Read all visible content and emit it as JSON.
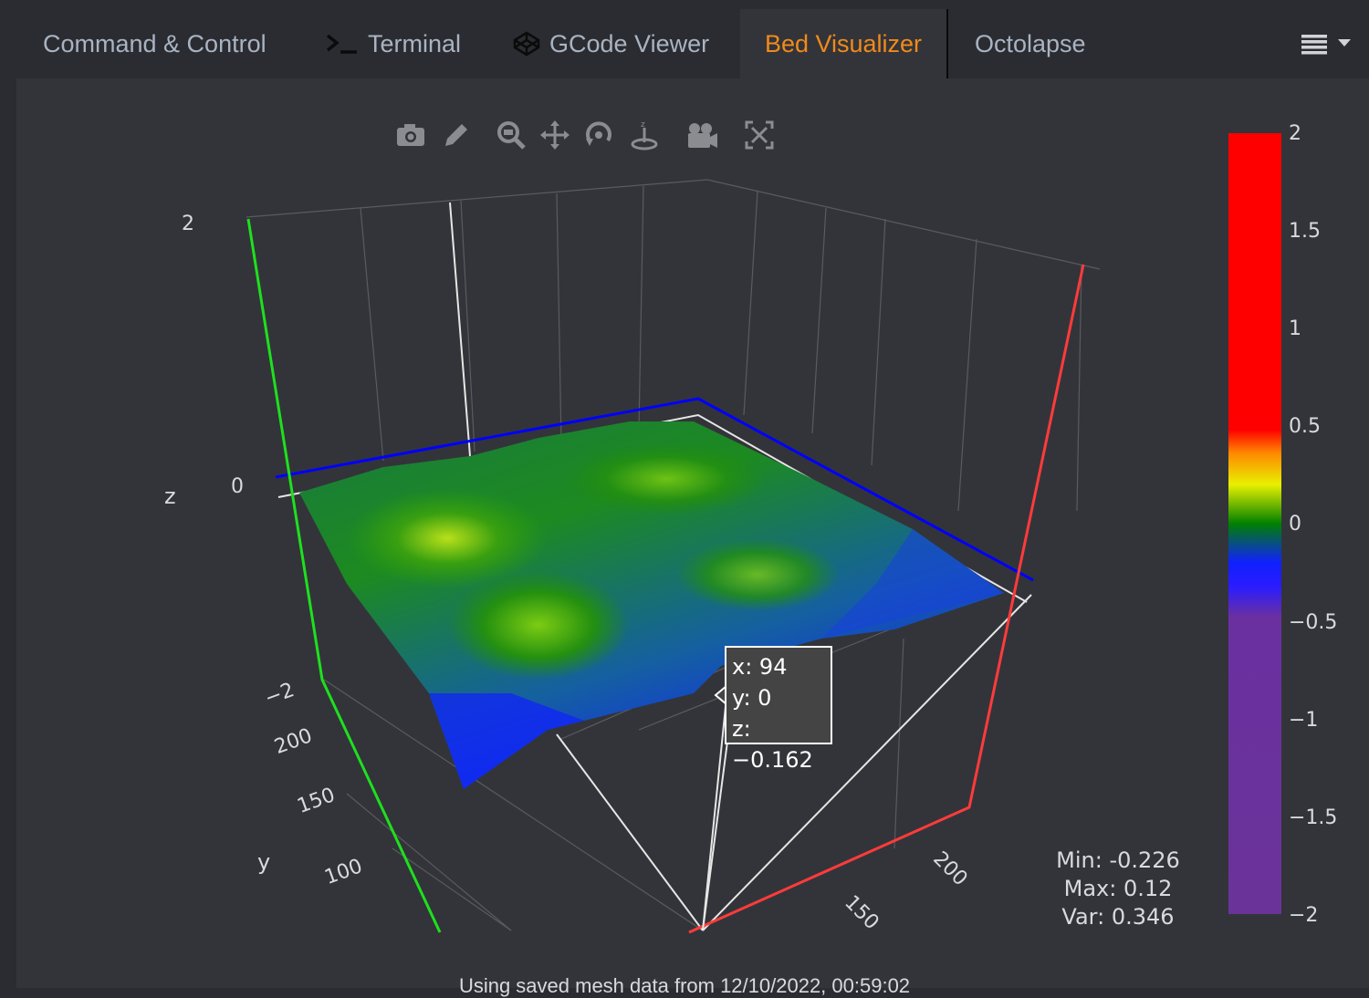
{
  "tabs": [
    {
      "label": "Command & Control",
      "icon": ""
    },
    {
      "label": "Terminal",
      "icon": "terminal-icon"
    },
    {
      "label": "GCode Viewer",
      "icon": "codepen-icon"
    },
    {
      "label": "Bed Visualizer",
      "icon": "",
      "active": true
    },
    {
      "label": "Octolapse",
      "icon": ""
    }
  ],
  "menu_icon": "hamburger-dropdown-icon",
  "toolbar": {
    "icons": [
      "camera-icon",
      "pencil-icon",
      "zoom-icon",
      "pan-icon",
      "orbit-rotation-icon",
      "turntable-rotation-icon",
      "reset-camera-icon",
      "autoscale-icon"
    ]
  },
  "plot": {
    "z_axis": {
      "title": "z",
      "ticks": [
        "2",
        "0",
        "−2"
      ]
    },
    "y_axis": {
      "title": "y",
      "ticks": [
        "200",
        "150",
        "100"
      ]
    },
    "x_axis": {
      "ticks": [
        "200",
        "150"
      ]
    },
    "colorbar": {
      "ticks": [
        "2",
        "1.5",
        "1",
        "0.5",
        "0",
        "−0.5",
        "−1",
        "−1.5",
        "−2"
      ]
    },
    "hover": {
      "x": "x: 94",
      "y": "y: 0",
      "z": "z: −0.162"
    }
  },
  "stats": {
    "min": "Min: -0.226",
    "max": "Max: 0.12",
    "var": "Var: 0.346"
  },
  "footer": "Using saved mesh data from 12/10/2022, 00:59:02",
  "colors": {
    "accent": "#f08a1c",
    "x_axis": "#ff3b3b",
    "y_axis": "#1ee01e",
    "zero_plane": "#0000ff"
  }
}
